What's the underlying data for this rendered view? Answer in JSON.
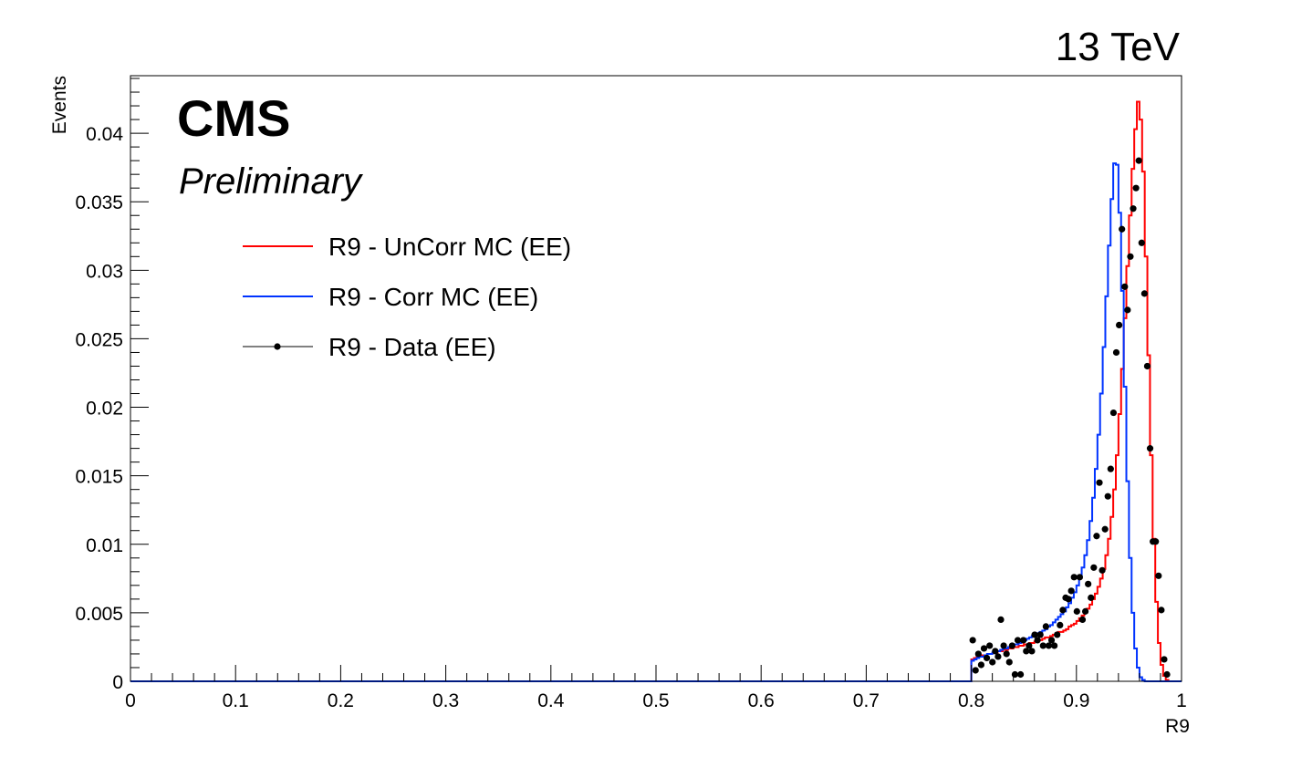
{
  "chart_data": {
    "type": "line",
    "energy_label": "13 TeV",
    "experiment_label": "CMS",
    "status_label": "Preliminary",
    "xlabel": "R9",
    "ylabel": "Events",
    "xlim": [
      0,
      1
    ],
    "ylim": [
      0,
      0.0442
    ],
    "x_ticks": [
      "0",
      "0.1",
      "0.2",
      "0.3",
      "0.4",
      "0.5",
      "0.6",
      "0.7",
      "0.8",
      "0.9",
      "1"
    ],
    "y_ticks": [
      "0",
      "0.005",
      "0.01",
      "0.015",
      "0.02",
      "0.025",
      "0.03",
      "0.035",
      "0.04"
    ],
    "grid": false,
    "legend_position": "top-left",
    "bin_edges_start": 0.8,
    "bin_width": 0.0025,
    "series": [
      {
        "name": "R9 - UnCorr MC (EE)",
        "style": "step",
        "color": "#ff0000",
        "values": [
          0.0016,
          0.0017,
          0.0018,
          0.0018,
          0.0019,
          0.0019,
          0.002,
          0.002,
          0.0021,
          0.0021,
          0.0022,
          0.0022,
          0.0023,
          0.0023,
          0.0024,
          0.0024,
          0.0025,
          0.0025,
          0.0026,
          0.0026,
          0.0027,
          0.0027,
          0.0028,
          0.0028,
          0.0029,
          0.003,
          0.003,
          0.0031,
          0.0032,
          0.0032,
          0.0033,
          0.0034,
          0.0035,
          0.0036,
          0.0036,
          0.0037,
          0.0038,
          0.004,
          0.0041,
          0.0042,
          0.0044,
          0.0046,
          0.0048,
          0.005,
          0.0053,
          0.0056,
          0.006,
          0.0064,
          0.0069,
          0.0075,
          0.0082,
          0.0092,
          0.0104,
          0.012,
          0.014,
          0.0165,
          0.0195,
          0.0228,
          0.0265,
          0.0303,
          0.034,
          0.0374,
          0.0403,
          0.0423,
          0.041,
          0.0372,
          0.031,
          0.0238,
          0.0165,
          0.0104,
          0.0058,
          0.0028,
          0.0012,
          0.0004,
          0.0001
        ]
      },
      {
        "name": "R9 - Corr MC (EE)",
        "style": "step",
        "color": "#0033ff",
        "values": [
          0.0015,
          0.0016,
          0.0017,
          0.0018,
          0.0018,
          0.0019,
          0.002,
          0.002,
          0.0021,
          0.0022,
          0.0022,
          0.0023,
          0.0024,
          0.0024,
          0.0025,
          0.0026,
          0.0027,
          0.0027,
          0.0028,
          0.0029,
          0.003,
          0.0031,
          0.0032,
          0.0033,
          0.0034,
          0.0035,
          0.0036,
          0.0037,
          0.0038,
          0.004,
          0.0041,
          0.0043,
          0.0045,
          0.0047,
          0.0049,
          0.0051,
          0.0054,
          0.0057,
          0.0061,
          0.0065,
          0.007,
          0.0076,
          0.0083,
          0.0092,
          0.0103,
          0.0117,
          0.0134,
          0.0155,
          0.018,
          0.021,
          0.0244,
          0.0281,
          0.0318,
          0.0352,
          0.0378,
          0.0377,
          0.0342,
          0.0285,
          0.0215,
          0.0146,
          0.009,
          0.005,
          0.0024,
          0.001,
          0.0003,
          0.0001,
          0.0,
          0.0,
          0.0,
          0.0,
          0.0,
          0.0,
          0.0,
          0.0,
          0.0
        ]
      },
      {
        "name": "R9 - Data (EE)",
        "style": "markers",
        "color": "#000000",
        "values": [
          0.003,
          0.0008,
          0.002,
          0.0012,
          0.0024,
          0.0017,
          0.0026,
          0.0014,
          0.0022,
          0.0018,
          0.0045,
          0.0026,
          0.002,
          0.0014,
          0.0026,
          0.0005,
          0.003,
          0.0005,
          0.003,
          0.0022,
          0.0026,
          0.0022,
          0.0034,
          0.003,
          0.0034,
          0.0026,
          0.004,
          0.0026,
          0.003,
          0.0026,
          0.0034,
          0.0041,
          0.0052,
          0.0061,
          0.006,
          0.0066,
          0.0076,
          0.0051,
          0.0076,
          0.0045,
          0.0051,
          0.0071,
          0.0061,
          0.0083,
          0.0106,
          0.0145,
          0.0081,
          0.0111,
          0.0135,
          0.0155,
          0.0196,
          0.024,
          0.026,
          0.033,
          0.0288,
          0.0271,
          0.031,
          0.0345,
          0.036,
          0.038,
          0.032,
          0.0283,
          0.023,
          0.017,
          0.0102,
          0.0102,
          0.0077,
          0.0052,
          0.0016,
          0.0005
        ]
      }
    ]
  }
}
